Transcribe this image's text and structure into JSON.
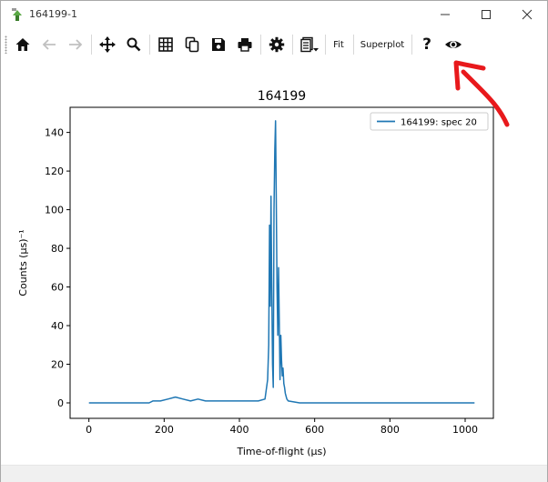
{
  "window": {
    "title": "164199-1",
    "buttons": [
      "minimize",
      "maximize",
      "close"
    ]
  },
  "toolbar": {
    "icons": [
      "home-icon",
      "back-icon",
      "forward-icon",
      "pan-icon",
      "zoom-icon",
      "grid-icon",
      "copy-icon",
      "save-icon",
      "print-icon",
      "settings-icon",
      "waterfall-icon",
      "help-icon",
      "eye-icon"
    ],
    "fit_label": "Fit",
    "superplot_label": "Superplot",
    "help_label": "?"
  },
  "annotation": {
    "color": "#e8191c",
    "shape": "arrow pointing to eye icon"
  },
  "chart_data": {
    "type": "line",
    "title": "164199",
    "xlabel": "Time-of-flight (μs)",
    "ylabel": "Counts (μs)⁻¹",
    "xlim": [
      -50,
      1075
    ],
    "ylim": [
      -8,
      153
    ],
    "xticks": [
      0,
      200,
      400,
      600,
      800,
      1000
    ],
    "yticks": [
      0,
      20,
      40,
      60,
      80,
      100,
      120,
      140
    ],
    "grid": false,
    "legend": "top-right",
    "color": "#1f77b4",
    "series": [
      {
        "name": "164199: spec 20",
        "x": [
          0,
          40,
          80,
          120,
          160,
          170,
          190,
          210,
          230,
          250,
          270,
          290,
          310,
          330,
          350,
          370,
          390,
          410,
          430,
          450,
          468,
          475,
          478,
          480,
          482,
          484,
          486,
          488,
          490,
          492,
          494,
          496,
          498,
          500,
          502,
          504,
          506,
          508,
          510,
          512,
          514,
          516,
          518,
          520,
          522,
          526,
          530,
          560,
          600,
          700,
          800,
          900,
          1000,
          1025
        ],
        "y": [
          0,
          0,
          0,
          0,
          0,
          1,
          1,
          2,
          3,
          2,
          1,
          2,
          1,
          1,
          1,
          1,
          1,
          1,
          1,
          1,
          2,
          12,
          30,
          92,
          50,
          107,
          62,
          20,
          8,
          100,
          131,
          146,
          105,
          60,
          35,
          70,
          42,
          12,
          35,
          22,
          14,
          18,
          10,
          8,
          5,
          2,
          1,
          0,
          0,
          0,
          0,
          0,
          0,
          0
        ]
      }
    ]
  }
}
